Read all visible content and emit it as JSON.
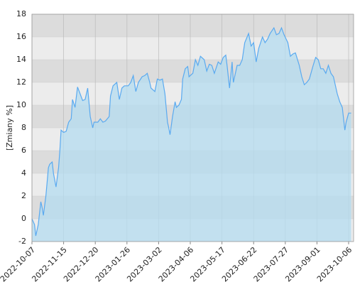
{
  "chart_data": {
    "type": "area",
    "ylabel": "[Zmiany %]",
    "color": "#5aaaf0",
    "fill": "#b4dcf0",
    "band_colors": [
      "#ececec",
      "#dcdcdc"
    ],
    "grid": true,
    "xlim": [
      0,
      252
    ],
    "xticks": [
      {
        "value": 0,
        "label": "2022-10-07"
      },
      {
        "value": 25,
        "label": "2022-11-15"
      },
      {
        "value": 50,
        "label": "2022-12-20"
      },
      {
        "value": 75,
        "label": "2023-01-26"
      },
      {
        "value": 100,
        "label": "2023-03-02"
      },
      {
        "value": 125,
        "label": "2023-04-06"
      },
      {
        "value": 150,
        "label": "2023-05-17"
      },
      {
        "value": 175,
        "label": "2023-06-22"
      },
      {
        "value": 200,
        "label": "2023-07-27"
      },
      {
        "value": 225,
        "label": "2023-09-01"
      },
      {
        "value": 250,
        "label": "2023-10-06"
      }
    ],
    "ylim": [
      -2,
      18
    ],
    "yticks": [
      -2,
      0,
      2,
      4,
      6,
      8,
      10,
      12,
      14,
      16,
      18
    ],
    "x": [
      0,
      2,
      3,
      5,
      7,
      8,
      9,
      11,
      13,
      14,
      16,
      17,
      19,
      21,
      22,
      23,
      25,
      27,
      29,
      31,
      32,
      34,
      36,
      38,
      40,
      42,
      44,
      46,
      48,
      49,
      52,
      54,
      56,
      58,
      61,
      62,
      64,
      67,
      69,
      71,
      73,
      76,
      78,
      80,
      82,
      84,
      87,
      89,
      91,
      93,
      94,
      97,
      99,
      101,
      103,
      105,
      107,
      108,
      109,
      111,
      113,
      114,
      116,
      118,
      119,
      121,
      123,
      124,
      127,
      129,
      131,
      133,
      136,
      138,
      140,
      142,
      144,
      147,
      149,
      151,
      153,
      154,
      156,
      158,
      159,
      162,
      164,
      166,
      168,
      171,
      173,
      175,
      177,
      179,
      182,
      184,
      186,
      188,
      191,
      193,
      195,
      197,
      199,
      202,
      204,
      206,
      208,
      211,
      213,
      215,
      217,
      219,
      222,
      224,
      226,
      228,
      230,
      232,
      234,
      236,
      238,
      241,
      243,
      245,
      247,
      248,
      250,
      252
    ],
    "values": [
      0,
      -0.5,
      -1.5,
      -0.5,
      1.5,
      1,
      0.3,
      2,
      4.5,
      4.8,
      5,
      4,
      2.8,
      4.5,
      6,
      7.8,
      7.6,
      7.7,
      8.5,
      8.8,
      10.5,
      9.8,
      11.6,
      11,
      10.4,
      10.5,
      11.5,
      9,
      8,
      8.5,
      8.5,
      8.8,
      8.5,
      8.6,
      9,
      10.8,
      11.7,
      12,
      10.5,
      11.5,
      11.7,
      11.7,
      12,
      12.6,
      11.2,
      12,
      12.5,
      12.6,
      12.8,
      12,
      11.5,
      11.2,
      12.3,
      12.2,
      12.3,
      11,
      8.5,
      8,
      7.4,
      9,
      10.3,
      9.8,
      10,
      10.5,
      12.3,
      13.2,
      13.4,
      12.5,
      12.8,
      14,
      13.5,
      14.3,
      14,
      13,
      13.6,
      13.5,
      12.8,
      13.8,
      13.6,
      14.2,
      14.4,
      13.5,
      11.5,
      13.8,
      12,
      13.5,
      13.5,
      14,
      15.5,
      16.3,
      15.2,
      15.5,
      13.8,
      15,
      16,
      15.5,
      15.8,
      16.3,
      16.8,
      16.2,
      16.3,
      16.8,
      16.2,
      15.5,
      14.3,
      14.5,
      14.6,
      13.5,
      12.5,
      11.8,
      12,
      12.3,
      13.5,
      14.2,
      14,
      13.2,
      13.2,
      12.8,
      13.5,
      12.8,
      12.5,
      11,
      10.3,
      9.8,
      7.8,
      8.5,
      9.3,
      9.3
    ]
  }
}
